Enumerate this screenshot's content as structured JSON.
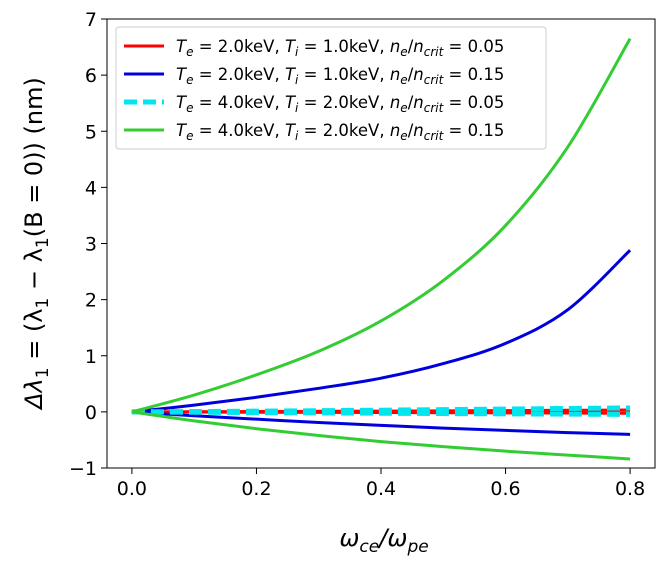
{
  "chart_data": {
    "type": "line",
    "title": "",
    "xlabel": "ω_ce/ω_pe",
    "ylabel": "Δλ₁ = (λ₁ − λ₁(B = 0)) (nm)",
    "xlim": [
      -0.04,
      0.84
    ],
    "ylim": [
      -1,
      7
    ],
    "xticks": [
      0.0,
      0.2,
      0.4,
      0.6,
      0.8
    ],
    "xtick_labels": [
      "0.0",
      "0.2",
      "0.4",
      "0.6",
      "0.8"
    ],
    "yticks": [
      -1,
      0,
      1,
      2,
      3,
      4,
      5,
      6,
      7
    ],
    "ytick_labels": [
      "−1",
      "0",
      "1",
      "2",
      "3",
      "4",
      "5",
      "6",
      "7"
    ],
    "grid": false,
    "legend_position": "top-left",
    "x": [
      0.0,
      0.1,
      0.2,
      0.3,
      0.4,
      0.5,
      0.6,
      0.7,
      0.8
    ],
    "series": [
      {
        "name": "T_e = 2.0keV, T_i = 1.0keV, n_e/n_crit = 0.05",
        "color": "#ff0000",
        "style": "solid",
        "branches": [
          [
            0,
            0.003,
            0.006,
            0.01,
            0.014,
            0.018,
            0.023,
            0.028,
            0.033
          ],
          [
            0,
            -0.003,
            -0.006,
            -0.009,
            -0.012,
            -0.015,
            -0.018,
            -0.021,
            -0.024
          ]
        ]
      },
      {
        "name": "T_e = 2.0keV, T_i = 1.0keV, n_e/n_crit = 0.15",
        "color": "#0000dd",
        "style": "solid",
        "branches": [
          [
            0,
            0.12,
            0.26,
            0.42,
            0.6,
            0.86,
            1.22,
            1.82,
            2.88
          ],
          [
            0,
            -0.07,
            -0.13,
            -0.19,
            -0.24,
            -0.29,
            -0.33,
            -0.37,
            -0.4
          ]
        ]
      },
      {
        "name": "T_e = 4.0keV, T_i = 2.0keV, n_e/n_crit = 0.05",
        "color": "#00e5ee",
        "style": "dashed",
        "branches": [
          [
            0,
            0.006,
            0.013,
            0.021,
            0.03,
            0.04,
            0.05,
            0.06,
            0.07
          ],
          [
            0,
            -0.006,
            -0.012,
            -0.018,
            -0.024,
            -0.03,
            -0.035,
            -0.04,
            -0.045
          ]
        ]
      },
      {
        "name": "T_e = 4.0keV, T_i = 2.0keV, n_e/n_crit = 0.15",
        "color": "#33cc33",
        "style": "solid",
        "branches": [
          [
            0,
            0.3,
            0.66,
            1.08,
            1.62,
            2.34,
            3.32,
            4.72,
            6.65
          ],
          [
            0,
            -0.16,
            -0.3,
            -0.42,
            -0.53,
            -0.62,
            -0.7,
            -0.77,
            -0.84
          ]
        ]
      }
    ],
    "legend": [
      {
        "prefix": "T",
        "sub1": "e",
        "v1": " = 2.0keV, ",
        "sub2": "i",
        "v2": " = 1.0keV, ",
        "sub3": "e",
        "sub4": "crit",
        "v3": " = 0.05"
      },
      {
        "prefix": "T",
        "sub1": "e",
        "v1": " = 2.0keV, ",
        "sub2": "i",
        "v2": " = 1.0keV, ",
        "sub3": "e",
        "sub4": "crit",
        "v3": " = 0.15"
      },
      {
        "prefix": "T",
        "sub1": "e",
        "v1": " = 4.0keV, ",
        "sub2": "i",
        "v2": " = 2.0keV, ",
        "sub3": "e",
        "sub4": "crit",
        "v3": " = 0.05"
      },
      {
        "prefix": "T",
        "sub1": "e",
        "v1": " = 4.0keV, ",
        "sub2": "i",
        "v2": " = 2.0keV, ",
        "sub3": "e",
        "sub4": "crit",
        "v3": " = 0.15"
      }
    ],
    "labels": {
      "omega": "ω",
      "sub_ce": "ce",
      "sub_pe": "pe",
      "slash": "/",
      "delta_lambda": "Δλ",
      "one": "1",
      "eq_open": " = (λ",
      "minus": " − λ",
      "b_part": "(B = 0)) (nm)",
      "n": "n"
    }
  }
}
